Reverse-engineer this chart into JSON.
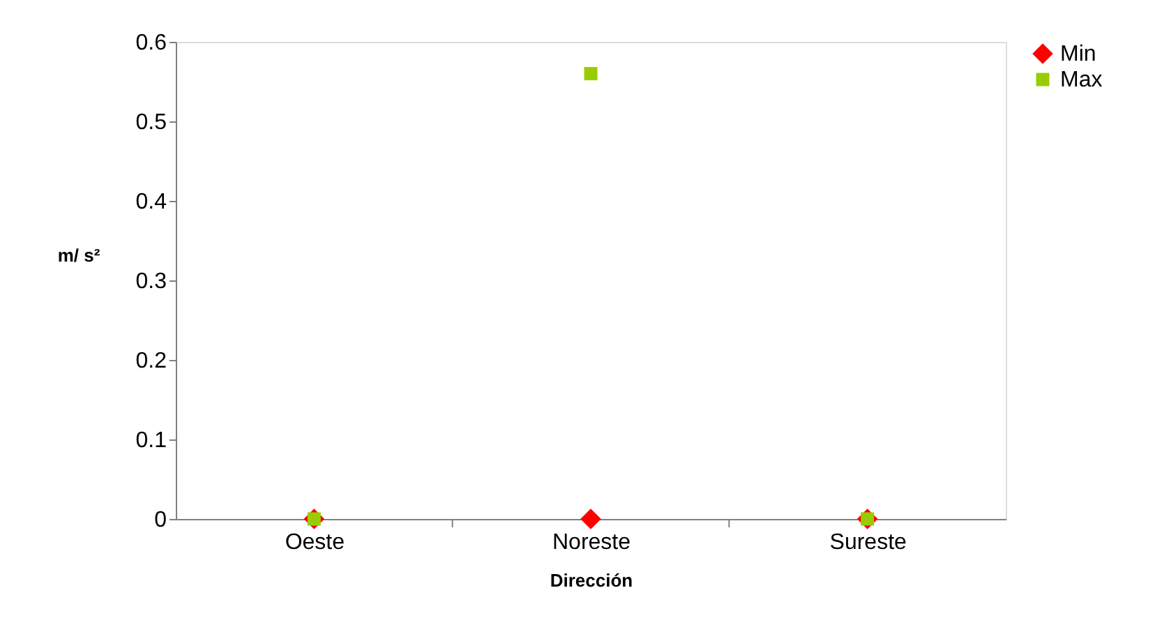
{
  "chart_data": {
    "type": "scatter",
    "xlabel": "Dirección",
    "ylabel": "m/ s²",
    "categories": [
      "Oeste",
      "Noreste",
      "Sureste"
    ],
    "series": [
      {
        "name": "Min",
        "color": "#ff0000",
        "marker": "diamond",
        "values": [
          0,
          0,
          0
        ]
      },
      {
        "name": "Max",
        "color": "#99cc00",
        "marker": "square",
        "values": [
          0,
          0.56,
          0
        ]
      }
    ],
    "ylim": [
      0,
      0.6
    ],
    "yticks": [
      0,
      0.1,
      0.2,
      0.3,
      0.4,
      0.5,
      0.6
    ],
    "grid": false,
    "legend": "right"
  }
}
